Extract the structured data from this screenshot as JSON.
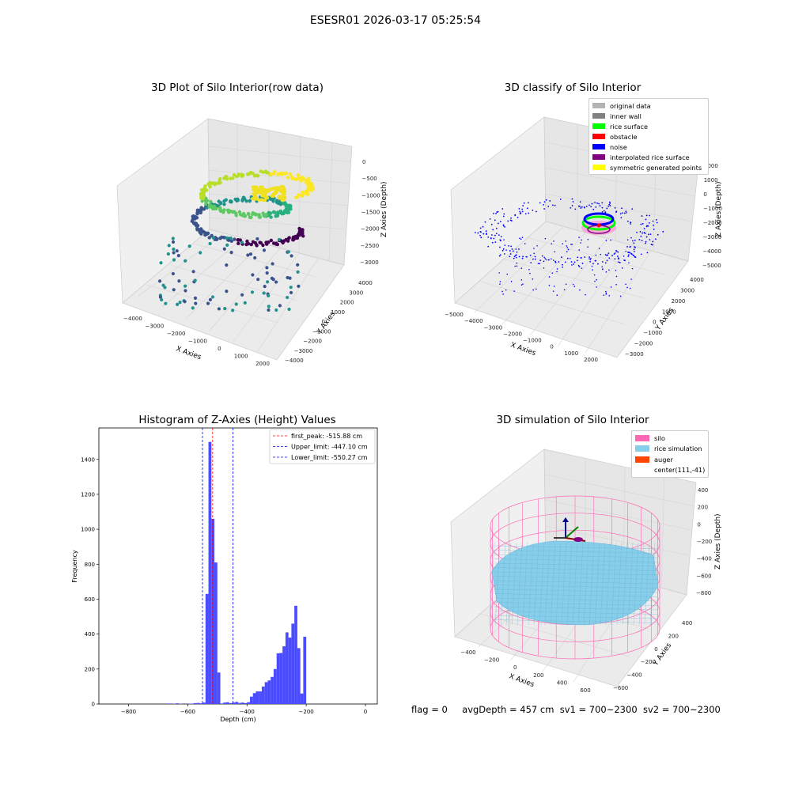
{
  "suptitle": "ESESR01 2026-03-17 05:25:54",
  "panel_raw": {
    "title": "3D Plot of Silo Interior(row data)",
    "xlabel": "X Axies",
    "ylabel": "Y Axies",
    "zlabel": "Z Axies (Depth)",
    "xticks": [
      "−4000",
      "−3000",
      "−2000",
      "−1000",
      "0",
      "1000",
      "2000"
    ],
    "yticks": [
      "−4000",
      "−3000",
      "−2000",
      "−1000",
      "0",
      "1000",
      "2000",
      "3000",
      "4000"
    ],
    "zticks": [
      "0",
      "−500",
      "−1000",
      "−1500",
      "−2000",
      "−2500",
      "−3000"
    ]
  },
  "panel_classify": {
    "title": "3D classify of Silo Interior",
    "xlabel": "X Axies",
    "ylabel": "Y Axies",
    "zlabel": "Z Axies (Depth)",
    "xticks": [
      "−5000",
      "−4000",
      "−3000",
      "−2000",
      "−1000",
      "0",
      "1000",
      "2000"
    ],
    "yticks": [
      "−3000",
      "−2000",
      "−1000",
      "0",
      "1000",
      "2000",
      "3000",
      "4000"
    ],
    "zticks": [
      "2000",
      "1000",
      "0",
      "−1000",
      "−2000",
      "−3000",
      "−4000",
      "−5000"
    ],
    "legend": [
      {
        "label": "original data",
        "color": "#b3b3b3"
      },
      {
        "label": "inner wall",
        "color": "#808080"
      },
      {
        "label": "rice surface",
        "color": "#00ff00"
      },
      {
        "label": "obstacle",
        "color": "#ff0000"
      },
      {
        "label": "noise",
        "color": "#0000ff"
      },
      {
        "label": "interpolated rice surface",
        "color": "#800080"
      },
      {
        "label": "symmetric generated points",
        "color": "#ffff00"
      }
    ]
  },
  "panel_sim": {
    "title": "3D simulation of Silo Interior",
    "xlabel": "X Axies",
    "ylabel": "Y Axies",
    "zlabel": "Z Axies (Depth)",
    "xticks": [
      "−400",
      "−200",
      "0",
      "200",
      "400",
      "600"
    ],
    "yticks": [
      "−600",
      "−400",
      "−200",
      "0",
      "200",
      "400"
    ],
    "zticks": [
      "400",
      "200",
      "0",
      "−200",
      "−400",
      "−600",
      "−800"
    ],
    "legend": [
      {
        "label": "silo",
        "color": "#ff69b4"
      },
      {
        "label": "rice simulation",
        "color": "#87ceeb"
      },
      {
        "label": "auger",
        "color": "#ff4500"
      },
      {
        "label": "center(111,-41)",
        "color": ""
      }
    ]
  },
  "status": {
    "flag": "flag = 0",
    "avg": "avgDepth = 457 cm",
    "sv1": "sv1 = 700~2300",
    "sv2": "sv2 = 700~2300"
  },
  "chart_data": [
    {
      "type": "bar",
      "title": "Histogram of Z-Axies (Height) Values",
      "xlabel": "Depth (cm)",
      "ylabel": "Frequency",
      "xlim": [
        -900,
        40
      ],
      "ylim": [
        0,
        1580
      ],
      "bin_width": 10,
      "bin_left": [
        -670,
        -650,
        -640,
        -630,
        -600,
        -590,
        -580,
        -570,
        -560,
        -550,
        -540,
        -530,
        -520,
        -510,
        -500,
        -490,
        -480,
        -470,
        -460,
        -450,
        -440,
        -430,
        -420,
        -410,
        -400,
        -390,
        -380,
        -370,
        -360,
        -350,
        -340,
        -330,
        -320,
        -310,
        -300,
        -290,
        -280,
        -270,
        -260,
        -250,
        -240,
        -230,
        -220,
        -210,
        -200,
        -190,
        -180,
        -170,
        -160,
        -150,
        -140,
        -130,
        -120,
        -110,
        -100,
        -90,
        -80,
        -70,
        -60,
        -50,
        -40,
        -30,
        -20,
        -10
      ],
      "values": [
        3,
        2,
        4,
        2,
        2,
        2,
        5,
        6,
        4,
        8,
        630,
        1500,
        1060,
        810,
        180,
        3,
        8,
        10,
        5,
        8,
        12,
        6,
        8,
        5,
        10,
        42,
        62,
        72,
        72,
        100,
        125,
        135,
        155,
        200,
        290,
        292,
        330,
        410,
        380,
        460,
        562,
        320,
        60,
        385,
        0,
        0,
        0,
        0,
        0,
        0,
        0,
        0,
        0,
        0,
        0,
        0,
        0,
        0,
        0,
        0,
        0,
        0,
        0,
        0
      ],
      "xticks": [
        -800,
        -600,
        -400,
        -200,
        0
      ],
      "yticks": [
        0,
        200,
        400,
        600,
        800,
        1000,
        1200,
        1400
      ],
      "lines": [
        {
          "label": "first_peak: -515.88 cm",
          "x": -515.88,
          "color": "#ff0000"
        },
        {
          "label": "Upper_limit: -447.10 cm",
          "x": -447.1,
          "color": "#0000ff"
        },
        {
          "label": "Lower_limit: -550.27 cm",
          "x": -550.27,
          "color": "#0000ff"
        }
      ],
      "bar_color": "#4b4bff"
    }
  ]
}
